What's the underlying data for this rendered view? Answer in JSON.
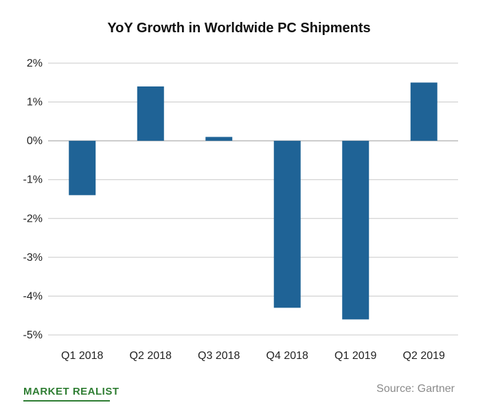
{
  "chart_data": {
    "type": "bar",
    "title": "YoY Growth in Worldwide PC Shipments",
    "xlabel": "",
    "ylabel": "",
    "categories": [
      "Q1 2018",
      "Q2 2018",
      "Q3 2018",
      "Q4 2018",
      "Q1 2019",
      "Q2 2019"
    ],
    "values": [
      -1.4,
      1.4,
      0.1,
      -4.3,
      -4.6,
      1.5
    ],
    "ylim": [
      -5,
      2
    ],
    "yticks": [
      2,
      1,
      0,
      -1,
      -2,
      -3,
      -4,
      -5
    ],
    "ytick_labels": [
      "2%",
      "1%",
      "0%",
      "-1%",
      "-2%",
      "-3%",
      "-4%",
      "-5%"
    ],
    "grid": true,
    "bar_color": "#1f6396",
    "legend": "none"
  },
  "footer": {
    "logo_text": "MARKET REALIST",
    "source": "Source: Gartner"
  }
}
